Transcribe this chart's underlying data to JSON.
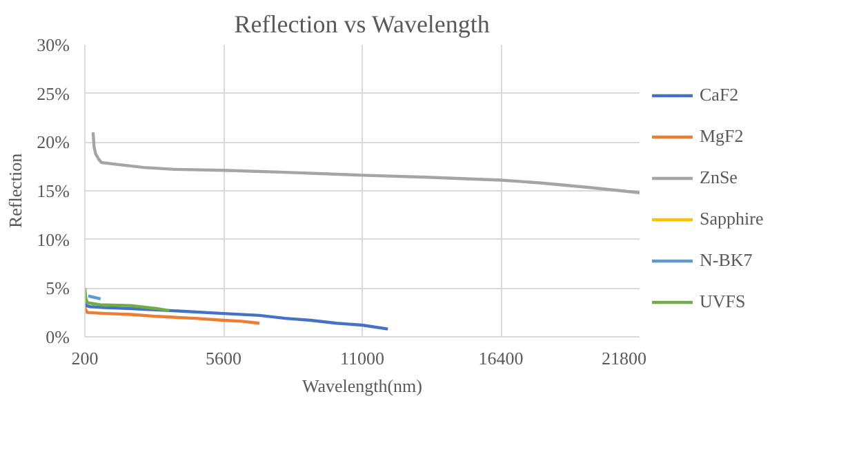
{
  "chart_data": {
    "type": "line",
    "title": "Reflection vs Wavelength",
    "xlabel": "Wavelength(nm)",
    "ylabel": "Reflection",
    "xlim": [
      200,
      21800
    ],
    "xticks": [
      200,
      5600,
      11000,
      16400,
      21800
    ],
    "ylim": [
      0,
      30
    ],
    "yticks": [
      {
        "value": 0,
        "label": "0%"
      },
      {
        "value": 5,
        "label": "5%"
      },
      {
        "value": 10,
        "label": "10%"
      },
      {
        "value": 15,
        "label": "15%"
      },
      {
        "value": 20,
        "label": "20%"
      },
      {
        "value": 25,
        "label": "25%"
      },
      {
        "value": 30,
        "label": "30%"
      }
    ],
    "grid": true,
    "legend": "right",
    "line_style": "solid",
    "marker": "none",
    "series": [
      {
        "name": "CaF2",
        "color": "#4472c4",
        "x": [
          200,
          250,
          400,
          1000,
          2000,
          3500,
          5600,
          7000,
          8000,
          9000,
          10000,
          11000,
          12000
        ],
        "values": [
          3.5,
          3.2,
          3.1,
          3.0,
          2.9,
          2.7,
          2.4,
          2.2,
          1.9,
          1.7,
          1.4,
          1.2,
          0.8
        ]
      },
      {
        "name": "MgF2",
        "color": "#ed7d31",
        "x": [
          200,
          250,
          300,
          1000,
          2000,
          3000,
          4500,
          5600,
          6300,
          7000
        ],
        "values": [
          3.0,
          2.7,
          2.5,
          2.4,
          2.3,
          2.1,
          1.9,
          1.7,
          1.6,
          1.4
        ]
      },
      {
        "name": "ZnSe",
        "color": "#a5a5a5",
        "x": [
          520,
          560,
          620,
          750,
          850,
          1500,
          2500,
          3700,
          5600,
          8000,
          11000,
          13500,
          16400,
          18000,
          20000,
          21800
        ],
        "values": [
          21.0,
          19.5,
          18.8,
          18.2,
          17.9,
          17.7,
          17.4,
          17.2,
          17.1,
          16.9,
          16.6,
          16.4,
          16.1,
          15.8,
          15.3,
          14.8
        ]
      },
      {
        "name": "Sapphire",
        "color": "#ffc000",
        "values": [
          null
        ]
      },
      {
        "name": "N-BK7",
        "color": "#5b9bd5",
        "x": [
          330,
          500,
          810
        ],
        "values": [
          4.2,
          4.1,
          3.9
        ]
      },
      {
        "name": "UVFS",
        "color": "#70ad47",
        "x": [
          200,
          230,
          300,
          800,
          2000,
          3000,
          3480
        ],
        "values": [
          5.0,
          4.0,
          3.5,
          3.3,
          3.2,
          2.9,
          2.7
        ]
      }
    ]
  }
}
